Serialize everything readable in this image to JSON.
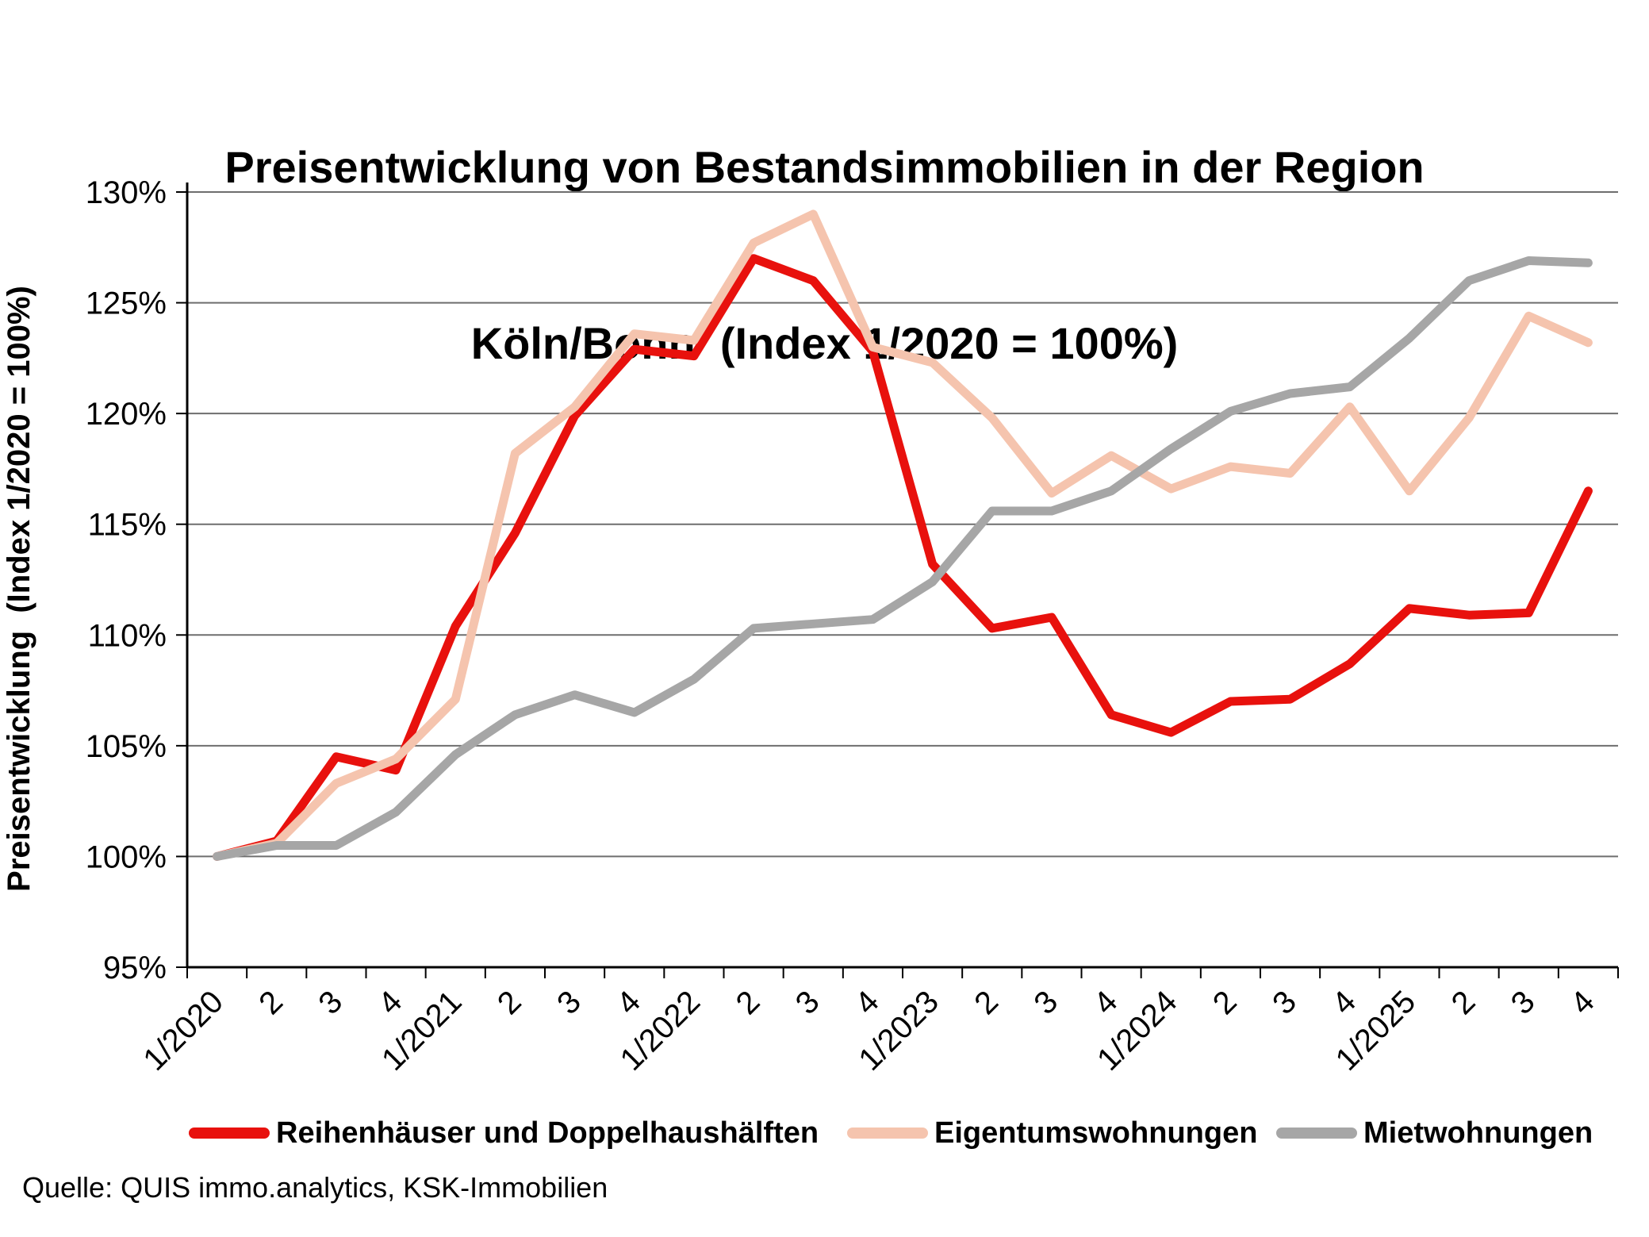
{
  "chart_data": {
    "type": "line",
    "title_lines": [
      "Preisentwicklung von Bestandsimmobilien in der Region",
      "Köln/Bonn  (Index 1/2020 = 100%)"
    ],
    "ylabel": "Preisentwicklung  (Index 1/2020 = 100%)",
    "source": "Quelle: QUIS immo.analytics, KSK-Immobilien",
    "categories": [
      "1/2020",
      "2",
      "3",
      "4",
      "1/2021",
      "2",
      "3",
      "4",
      "1/2022",
      "2",
      "3",
      "4",
      "1/2023",
      "2",
      "3",
      "4",
      "1/2024",
      "2",
      "3",
      "4",
      "1/2025",
      "2",
      "3",
      "4"
    ],
    "series": [
      {
        "name": "Reihenhäuser und Doppelhaushälften",
        "color": "#e8110d",
        "values": [
          100.0,
          100.7,
          104.5,
          103.9,
          110.4,
          114.6,
          119.9,
          122.9,
          122.6,
          127.0,
          126.0,
          122.8,
          113.2,
          110.3,
          110.8,
          106.4,
          105.6,
          107.0,
          107.1,
          108.7,
          111.2,
          110.9,
          111.0,
          116.5
        ]
      },
      {
        "name": "Eigentumswohnungen",
        "color": "#f5c4ae",
        "values": [
          100.0,
          100.6,
          103.3,
          104.4,
          107.1,
          118.2,
          120.3,
          123.6,
          123.3,
          127.7,
          129.0,
          123.0,
          122.3,
          119.8,
          116.4,
          118.1,
          116.6,
          117.6,
          117.3,
          120.3,
          116.5,
          119.8,
          124.4,
          123.2
        ]
      },
      {
        "name": "Mietwohnungen",
        "color": "#a6a6a6",
        "values": [
          100.0,
          100.5,
          100.5,
          102.0,
          104.6,
          106.4,
          107.3,
          106.5,
          108.0,
          110.3,
          110.5,
          110.7,
          112.4,
          115.6,
          115.6,
          116.5,
          118.4,
          120.1,
          120.9,
          121.2,
          123.4,
          126.0,
          126.9,
          126.8
        ]
      }
    ],
    "ylim": [
      95,
      130
    ],
    "y_tick_step": 5,
    "y_tick_suffix": "%",
    "grid": true,
    "legend_position": "bottom",
    "gridline_color": "#6e6e6e",
    "axis_color": "#000000",
    "line_width": 11
  }
}
